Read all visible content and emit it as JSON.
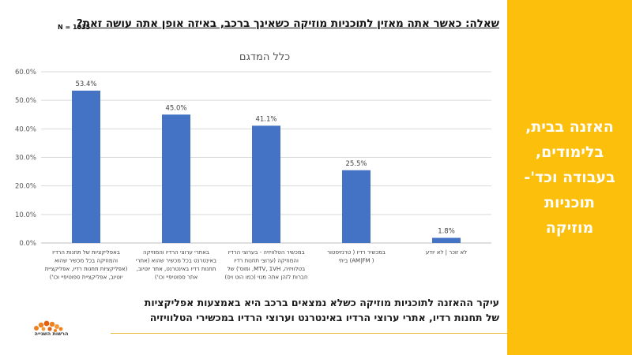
{
  "header": {
    "question": "שאלה: כאשר אתה מאזין לתוכניות מוזיקה כשאינך ברכב, באיזה אופן אתה עושה זאת?",
    "sample_size": "N = 1035"
  },
  "chart_data": {
    "type": "bar",
    "title": "כלל המדגם",
    "categories": [
      [
        "באפליקציות של תחנות הרדיו",
        "והמוזיקה בכל מכשיר שהוא",
        "(אפליקציות תחנות רדיו, אפליקציית",
        "יוטיוב, אפליקציית ספוטיפיי וכו')"
      ],
      [
        "באתרי ערוצי הרדיו והמוזיקה",
        "באינטרנט בכל מכשיר שהוא (אתרי",
        "תחנות רדיו באינטרנט, אתר יוטיוב,",
        "אתר ספוטיפיי וכו')"
      ],
      [
        "במכשיר הטלוויזיה - בערוצי הרדיו",
        "והמוזיקה (ערוצי תחנות רדיו",
        "בטלוויזיה, MTV, 1VH, ומוס') של",
        "חברות לזהן אתה מנוי (כמו הוט ויס)"
      ],
      [
        "במכשיר רדיו ( טרנזיסטור",
        "( AM|FM) ביתי"
      ],
      [
        "לא זוכר | לא יודע"
      ]
    ],
    "values": [
      53.4,
      45.0,
      41.1,
      25.5,
      1.8
    ],
    "value_labels": [
      "53.4%",
      "45.0%",
      "41.1%",
      "25.5%",
      "1.8%"
    ],
    "y_ticks": [
      "0.0%",
      "10.0%",
      "20.0%",
      "30.0%",
      "40.0%",
      "50.0%",
      "60.0%"
    ],
    "ylim": [
      0,
      60
    ],
    "grid": true,
    "bar_color": "#4472c4"
  },
  "conclusion": {
    "line1": "עיקר ההאזנה לתוכניות מוזיקה כשלא נמצאים ברכב היא באמצעות אפליקציות",
    "line2": "של תחנות רדיו, אתרי ערוצי הרדיו באינטרנט וערוצי הרדיו במכשירי הטלוויזיה"
  },
  "logo": {
    "text": "הרשות השנייה",
    "color": "#f07f1e"
  },
  "side_panel": {
    "lines": [
      "האזנה בבית,",
      "בלימודים,",
      "בעבודה וכד'-",
      "תוכניות",
      "מוזיקה"
    ],
    "background": "#fcbf0b"
  }
}
